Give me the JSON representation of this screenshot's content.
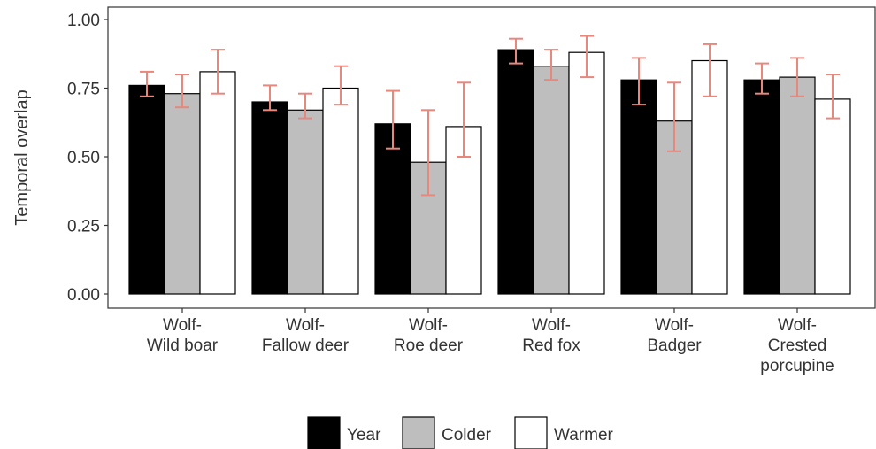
{
  "chart_data": {
    "type": "bar",
    "title": "",
    "xlabel": "",
    "ylabel": "Temporal overlap",
    "ylim": [
      0,
      1.0
    ],
    "yticks": [
      0.0,
      0.25,
      0.5,
      0.75,
      1.0
    ],
    "ytick_labels": [
      "0.00",
      "0.25",
      "0.50",
      "0.75",
      "1.00"
    ],
    "categories": [
      [
        "Wolf-",
        "Wild boar"
      ],
      [
        "Wolf-",
        "Fallow deer"
      ],
      [
        "Wolf-",
        "Roe deer"
      ],
      [
        "Wolf-",
        "Red fox"
      ],
      [
        "Wolf-",
        "Badger"
      ],
      [
        "Wolf-",
        "Crested",
        "porcupine"
      ]
    ],
    "series": [
      {
        "name": "Year",
        "color": "#000000",
        "values": [
          0.76,
          0.7,
          0.62,
          0.89,
          0.78,
          0.78
        ],
        "error_low": [
          0.72,
          0.67,
          0.53,
          0.84,
          0.69,
          0.73
        ],
        "error_high": [
          0.81,
          0.76,
          0.74,
          0.93,
          0.86,
          0.84
        ]
      },
      {
        "name": "Colder",
        "color": "#bebebe",
        "values": [
          0.73,
          0.67,
          0.48,
          0.83,
          0.63,
          0.79
        ],
        "error_low": [
          0.68,
          0.64,
          0.36,
          0.78,
          0.52,
          0.72
        ],
        "error_high": [
          0.8,
          0.73,
          0.67,
          0.89,
          0.77,
          0.86
        ]
      },
      {
        "name": "Warmer",
        "color": "#ffffff",
        "values": [
          0.81,
          0.75,
          0.61,
          0.88,
          0.85,
          0.71
        ],
        "error_low": [
          0.73,
          0.69,
          0.5,
          0.79,
          0.72,
          0.64
        ],
        "error_high": [
          0.89,
          0.83,
          0.77,
          0.94,
          0.91,
          0.8
        ]
      }
    ],
    "error_bar_color": "#e8877c",
    "grid": false,
    "legend_position": "bottom"
  }
}
